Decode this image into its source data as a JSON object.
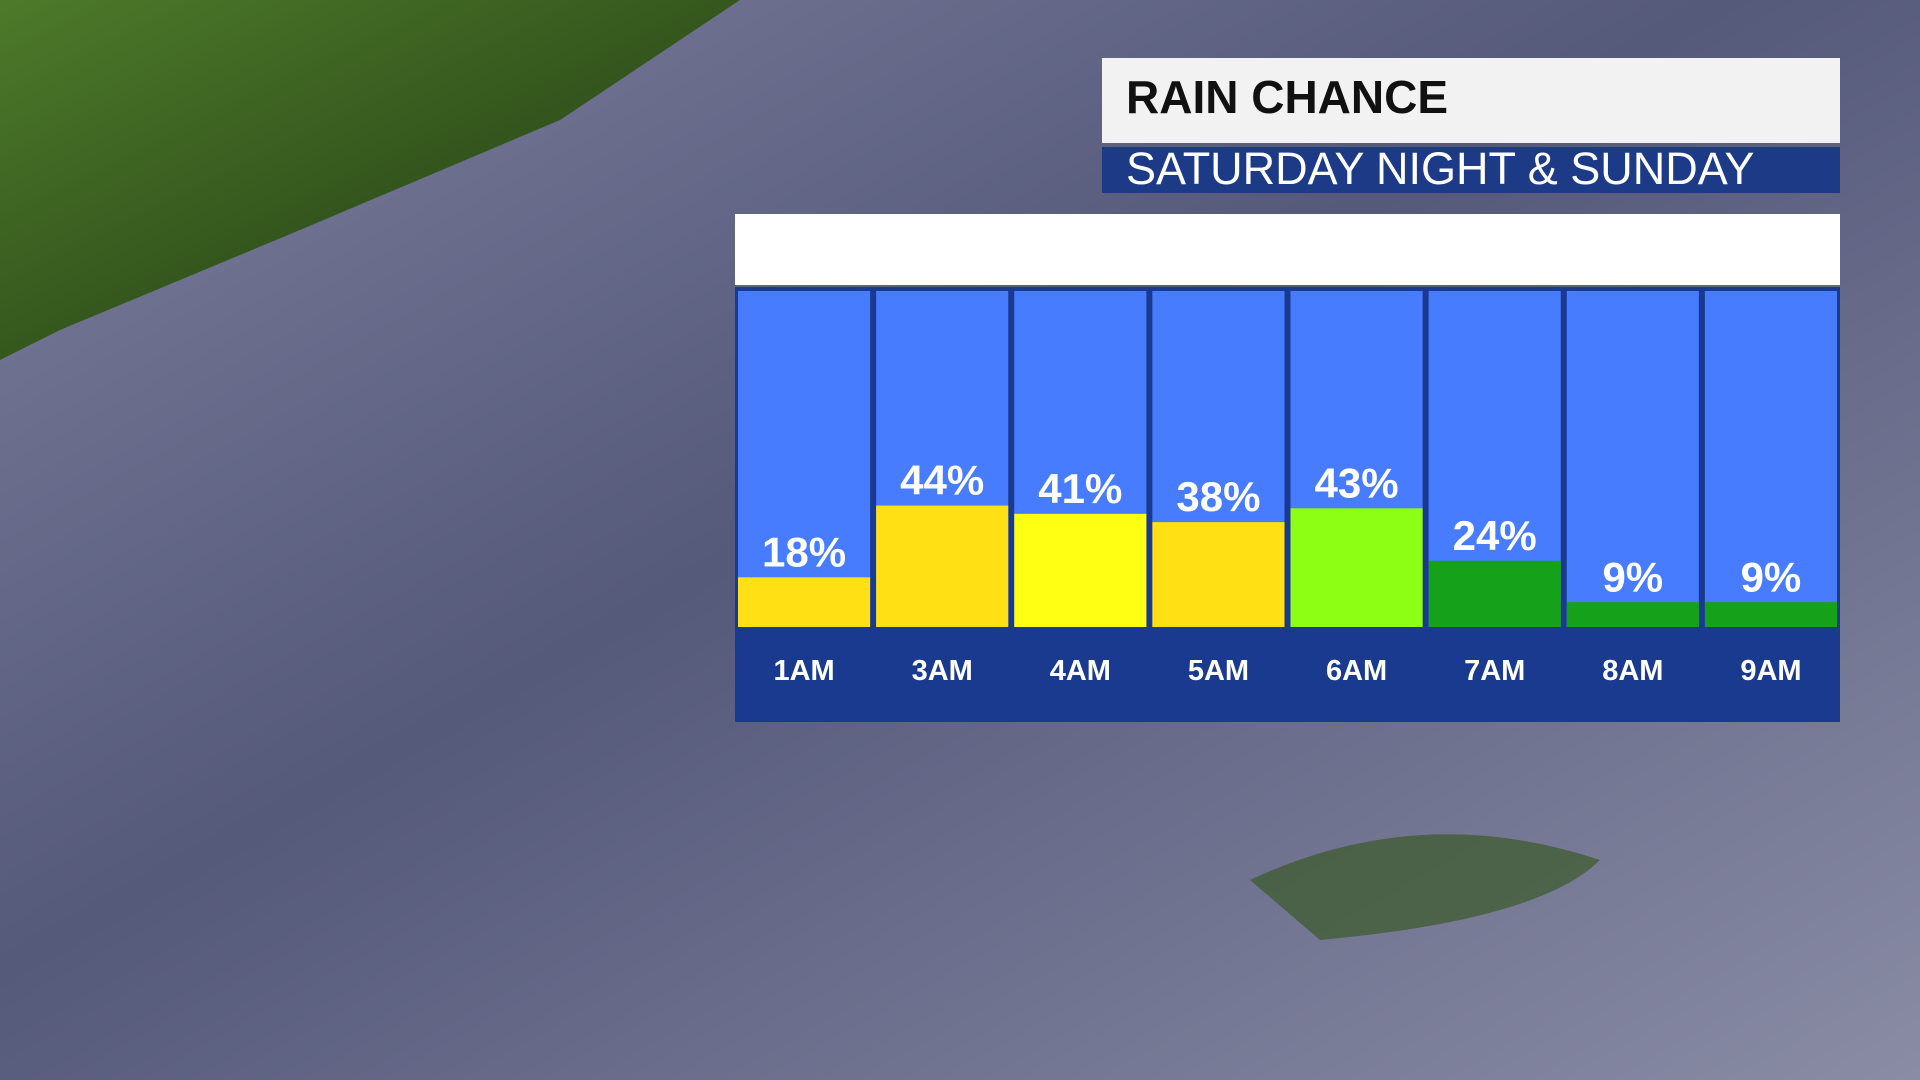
{
  "chart_data": {
    "type": "bar",
    "title": "RAIN CHANCE",
    "subtitle": "SATURDAY NIGHT & SUNDAY",
    "categories": [
      "1AM",
      "3AM",
      "4AM",
      "5AM",
      "6AM",
      "7AM",
      "8AM",
      "9AM"
    ],
    "values": [
      18,
      44,
      41,
      38,
      43,
      24,
      9,
      9
    ],
    "value_labels": [
      "18%",
      "44%",
      "41%",
      "38%",
      "43%",
      "24%",
      "9%",
      "9%"
    ],
    "colors": [
      "#ffe014",
      "#ffe014",
      "#ffff14",
      "#ffe014",
      "#8cff14",
      "#15a11a",
      "#15a11a",
      "#15a11a"
    ]
  }
}
